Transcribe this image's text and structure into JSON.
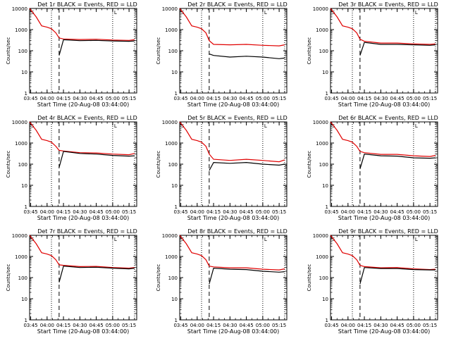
{
  "figure": {
    "start_time_label": "Start Time (20-Aug-08 03:44:00)",
    "ylabel": "Counts/sec",
    "y_tick_labels": [
      "1",
      "10",
      "100",
      "1000",
      "10000"
    ],
    "x_tick_labels": [
      "03:45",
      "04:00",
      "04:15",
      "04:30",
      "04:45",
      "05:00",
      "05:15"
    ],
    "series_colors": {
      "events": "#000000",
      "lld": "#e00000"
    },
    "marker_glyphs": [
      "S",
      "L"
    ]
  },
  "chart_data": [
    {
      "type": "line",
      "title": "Det 1r BLACK = Events, RED = LLD",
      "xlabel": "Start Time (20-Aug-08 03:44:00)",
      "ylabel": "Counts/sec",
      "y_scale": "log",
      "ylim": [
        1,
        10000
      ],
      "xlim": [
        "03:44",
        "05:22"
      ],
      "x_ticks": [
        "03:45",
        "04:00",
        "04:15",
        "04:30",
        "04:45",
        "05:00",
        "05:15"
      ],
      "markers": {
        "dotted": [
          "04:04",
          "05:00",
          "05:20"
        ],
        "dashed": [
          "04:11"
        ]
      },
      "series": [
        {
          "name": "Events",
          "color": "#000000",
          "x": [
            "04:11",
            "04:15",
            "04:30",
            "04:45",
            "05:00",
            "05:15",
            "05:20"
          ],
          "values": [
            60,
            330,
            300,
            310,
            290,
            280,
            290
          ]
        },
        {
          "name": "LLD",
          "color": "#e00000",
          "x": [
            "03:44",
            "03:50",
            "03:55",
            "04:00",
            "04:04",
            "04:08",
            "04:11",
            "04:15",
            "04:30",
            "04:45",
            "05:00",
            "05:15",
            "05:20"
          ],
          "values": [
            10000,
            4000,
            1500,
            1300,
            1100,
            700,
            400,
            360,
            340,
            350,
            320,
            310,
            330
          ]
        }
      ]
    },
    {
      "type": "line",
      "title": "Det 2r BLACK = Events, RED = LLD",
      "xlabel": "Start Time (20-Aug-08 03:44:00)",
      "ylabel": "Counts/sec",
      "y_scale": "log",
      "ylim": [
        1,
        10000
      ],
      "xlim": [
        "03:44",
        "05:22"
      ],
      "x_ticks": [
        "03:45",
        "04:00",
        "04:15",
        "04:30",
        "04:45",
        "05:00",
        "05:15"
      ],
      "markers": {
        "dotted": [
          "04:04",
          "05:00",
          "05:20"
        ],
        "dashed": [
          "04:11"
        ]
      },
      "series": [
        {
          "name": "Events",
          "color": "#000000",
          "x": [
            "04:11",
            "04:15",
            "04:30",
            "04:45",
            "05:00",
            "05:15",
            "05:20"
          ],
          "values": [
            70,
            60,
            50,
            55,
            50,
            42,
            45
          ]
        },
        {
          "name": "LLD",
          "color": "#e00000",
          "x": [
            "03:44",
            "03:50",
            "03:55",
            "04:00",
            "04:04",
            "04:08",
            "04:11",
            "04:15",
            "04:30",
            "04:45",
            "05:00",
            "05:15",
            "05:20"
          ],
          "values": [
            10000,
            4000,
            1500,
            1300,
            1100,
            700,
            300,
            200,
            190,
            200,
            180,
            170,
            190
          ]
        }
      ]
    },
    {
      "type": "line",
      "title": "Det 3r BLACK = Events, RED = LLD",
      "xlabel": "Start Time (20-Aug-08 03:44:00)",
      "ylabel": "Counts/sec",
      "y_scale": "log",
      "ylim": [
        1,
        10000
      ],
      "xlim": [
        "03:44",
        "05:22"
      ],
      "x_ticks": [
        "03:45",
        "04:00",
        "04:15",
        "04:30",
        "04:45",
        "05:00",
        "05:15"
      ],
      "markers": {
        "dotted": [
          "04:04",
          "05:00",
          "05:20"
        ],
        "dashed": [
          "04:11"
        ]
      },
      "series": [
        {
          "name": "Events",
          "color": "#000000",
          "x": [
            "04:11",
            "04:15",
            "04:30",
            "04:45",
            "05:00",
            "05:15",
            "05:20"
          ],
          "values": [
            60,
            250,
            200,
            200,
            190,
            180,
            190
          ]
        },
        {
          "name": "LLD",
          "color": "#e00000",
          "x": [
            "03:44",
            "03:50",
            "03:55",
            "04:00",
            "04:04",
            "04:08",
            "04:11",
            "04:15",
            "04:30",
            "04:45",
            "05:00",
            "05:15",
            "05:20"
          ],
          "values": [
            10000,
            4000,
            1500,
            1300,
            1100,
            700,
            350,
            280,
            230,
            230,
            210,
            200,
            210
          ]
        }
      ]
    },
    {
      "type": "line",
      "title": "Det 4r BLACK = Events, RED = LLD",
      "xlabel": "Start Time (20-Aug-08 03:44:00)",
      "ylabel": "Counts/sec",
      "y_scale": "log",
      "ylim": [
        1,
        10000
      ],
      "xlim": [
        "03:44",
        "05:22"
      ],
      "x_ticks": [
        "03:45",
        "04:00",
        "04:15",
        "04:30",
        "04:45",
        "05:00",
        "05:15"
      ],
      "markers": {
        "dotted": [
          "04:04",
          "05:00",
          "05:20"
        ],
        "dashed": [
          "04:11"
        ]
      },
      "series": [
        {
          "name": "Events",
          "color": "#000000",
          "x": [
            "04:11",
            "04:15",
            "04:30",
            "04:45",
            "05:00",
            "05:15",
            "05:20"
          ],
          "values": [
            70,
            400,
            320,
            300,
            260,
            240,
            250
          ]
        },
        {
          "name": "LLD",
          "color": "#e00000",
          "x": [
            "03:44",
            "03:50",
            "03:55",
            "04:00",
            "04:04",
            "04:08",
            "04:11",
            "04:15",
            "04:30",
            "04:45",
            "05:00",
            "05:15",
            "05:20"
          ],
          "values": [
            10000,
            4000,
            1500,
            1300,
            1100,
            700,
            450,
            420,
            350,
            340,
            300,
            280,
            320
          ]
        }
      ]
    },
    {
      "type": "line",
      "title": "Det 5r BLACK = Events, RED = LLD",
      "xlabel": "Start Time (20-Aug-08 03:44:00)",
      "ylabel": "Counts/sec",
      "y_scale": "log",
      "ylim": [
        1,
        10000
      ],
      "xlim": [
        "03:44",
        "05:22"
      ],
      "x_ticks": [
        "03:45",
        "04:00",
        "04:15",
        "04:30",
        "04:45",
        "05:00",
        "05:15"
      ],
      "markers": {
        "dotted": [
          "04:04",
          "05:00",
          "05:20"
        ],
        "dashed": [
          "04:11"
        ]
      },
      "series": [
        {
          "name": "Events",
          "color": "#000000",
          "x": [
            "04:11",
            "04:15",
            "04:30",
            "04:45",
            "05:00",
            "05:15",
            "05:20"
          ],
          "values": [
            50,
            120,
            110,
            120,
            100,
            90,
            100
          ]
        },
        {
          "name": "LLD",
          "color": "#e00000",
          "x": [
            "03:44",
            "03:50",
            "03:55",
            "04:00",
            "04:04",
            "04:08",
            "04:11",
            "04:15",
            "04:30",
            "04:45",
            "05:00",
            "05:15",
            "05:20"
          ],
          "values": [
            10000,
            4000,
            1500,
            1300,
            1100,
            700,
            300,
            170,
            150,
            170,
            150,
            130,
            160
          ]
        }
      ]
    },
    {
      "type": "line",
      "title": "Det 6r BLACK = Events, RED = LLD",
      "xlabel": "Start Time (20-Aug-08 03:44:00)",
      "ylabel": "Counts/sec",
      "y_scale": "log",
      "ylim": [
        1,
        10000
      ],
      "xlim": [
        "03:44",
        "05:22"
      ],
      "x_ticks": [
        "03:45",
        "04:00",
        "04:15",
        "04:30",
        "04:45",
        "05:00",
        "05:15"
      ],
      "markers": {
        "dotted": [
          "04:04",
          "05:00",
          "05:20"
        ],
        "dashed": [
          "04:11"
        ]
      },
      "series": [
        {
          "name": "Events",
          "color": "#000000",
          "x": [
            "04:11",
            "04:15",
            "04:30",
            "04:45",
            "05:00",
            "05:15",
            "05:20"
          ],
          "values": [
            60,
            300,
            250,
            240,
            200,
            190,
            200
          ]
        },
        {
          "name": "LLD",
          "color": "#e00000",
          "x": [
            "03:44",
            "03:50",
            "03:55",
            "04:00",
            "04:04",
            "04:08",
            "04:11",
            "04:15",
            "04:30",
            "04:45",
            "05:00",
            "05:15",
            "05:20"
          ],
          "values": [
            10000,
            4000,
            1500,
            1300,
            1100,
            700,
            400,
            350,
            290,
            290,
            250,
            230,
            260
          ]
        }
      ]
    },
    {
      "type": "line",
      "title": "Det 7r BLACK = Events, RED = LLD",
      "xlabel": "Start Time (20-Aug-08 03:44:00)",
      "ylabel": "Counts/sec",
      "y_scale": "log",
      "ylim": [
        1,
        10000
      ],
      "xlim": [
        "03:44",
        "05:22"
      ],
      "x_ticks": [
        "03:45",
        "04:00",
        "04:15",
        "04:30",
        "04:45",
        "05:00",
        "05:15"
      ],
      "markers": {
        "dotted": [
          "04:04",
          "05:00",
          "05:20"
        ],
        "dashed": [
          "04:11"
        ]
      },
      "series": [
        {
          "name": "Events",
          "color": "#000000",
          "x": [
            "04:11",
            "04:15",
            "04:30",
            "04:45",
            "05:00",
            "05:15",
            "05:20"
          ],
          "values": [
            60,
            350,
            300,
            310,
            280,
            260,
            280
          ]
        },
        {
          "name": "LLD",
          "color": "#e00000",
          "x": [
            "03:44",
            "03:50",
            "03:55",
            "04:00",
            "04:04",
            "04:08",
            "04:11",
            "04:15",
            "04:30",
            "04:45",
            "05:00",
            "05:15",
            "05:20"
          ],
          "values": [
            10000,
            4000,
            1500,
            1300,
            1100,
            700,
            400,
            380,
            330,
            340,
            300,
            280,
            300
          ]
        }
      ]
    },
    {
      "type": "line",
      "title": "Det 8r BLACK = Events, RED = LLD",
      "xlabel": "Start Time (20-Aug-08 03:44:00)",
      "ylabel": "Counts/sec",
      "y_scale": "log",
      "ylim": [
        1,
        10000
      ],
      "xlim": [
        "03:44",
        "05:22"
      ],
      "x_ticks": [
        "03:45",
        "04:00",
        "04:15",
        "04:30",
        "04:45",
        "05:00",
        "05:15"
      ],
      "markers": {
        "dotted": [
          "04:04",
          "05:00",
          "05:20"
        ],
        "dashed": [
          "04:11"
        ]
      },
      "series": [
        {
          "name": "Events",
          "color": "#000000",
          "x": [
            "04:11",
            "04:15",
            "04:30",
            "04:45",
            "05:00",
            "05:15",
            "05:20"
          ],
          "values": [
            50,
            280,
            250,
            240,
            200,
            180,
            190
          ]
        },
        {
          "name": "LLD",
          "color": "#e00000",
          "x": [
            "03:44",
            "03:50",
            "03:55",
            "04:00",
            "04:04",
            "04:08",
            "04:11",
            "04:15",
            "04:30",
            "04:45",
            "05:00",
            "05:15",
            "05:20"
          ],
          "values": [
            10000,
            4000,
            1500,
            1300,
            1100,
            700,
            350,
            320,
            290,
            290,
            250,
            230,
            260
          ]
        }
      ]
    },
    {
      "type": "line",
      "title": "Det 9r BLACK = Events, RED = LLD",
      "xlabel": "Start Time (20-Aug-08 03:44:00)",
      "ylabel": "Counts/sec",
      "y_scale": "log",
      "ylim": [
        1,
        10000
      ],
      "xlim": [
        "03:44",
        "05:22"
      ],
      "x_ticks": [
        "03:45",
        "04:00",
        "04:15",
        "04:30",
        "04:45",
        "05:00",
        "05:15"
      ],
      "markers": {
        "dotted": [
          "04:04",
          "05:00",
          "05:20"
        ],
        "dashed": [
          "04:11"
        ]
      },
      "series": [
        {
          "name": "Events",
          "color": "#000000",
          "x": [
            "04:11",
            "04:15",
            "04:30",
            "04:45",
            "05:00",
            "05:15",
            "05:20"
          ],
          "values": [
            50,
            300,
            270,
            270,
            240,
            230,
            230
          ]
        },
        {
          "name": "LLD",
          "color": "#e00000",
          "x": [
            "03:44",
            "03:50",
            "03:55",
            "04:00",
            "04:04",
            "04:08",
            "04:11",
            "04:15",
            "04:30",
            "04:45",
            "05:00",
            "05:15",
            "05:20"
          ],
          "values": [
            10000,
            4000,
            1500,
            1300,
            1100,
            700,
            380,
            330,
            290,
            300,
            260,
            240,
            250
          ]
        }
      ]
    }
  ]
}
